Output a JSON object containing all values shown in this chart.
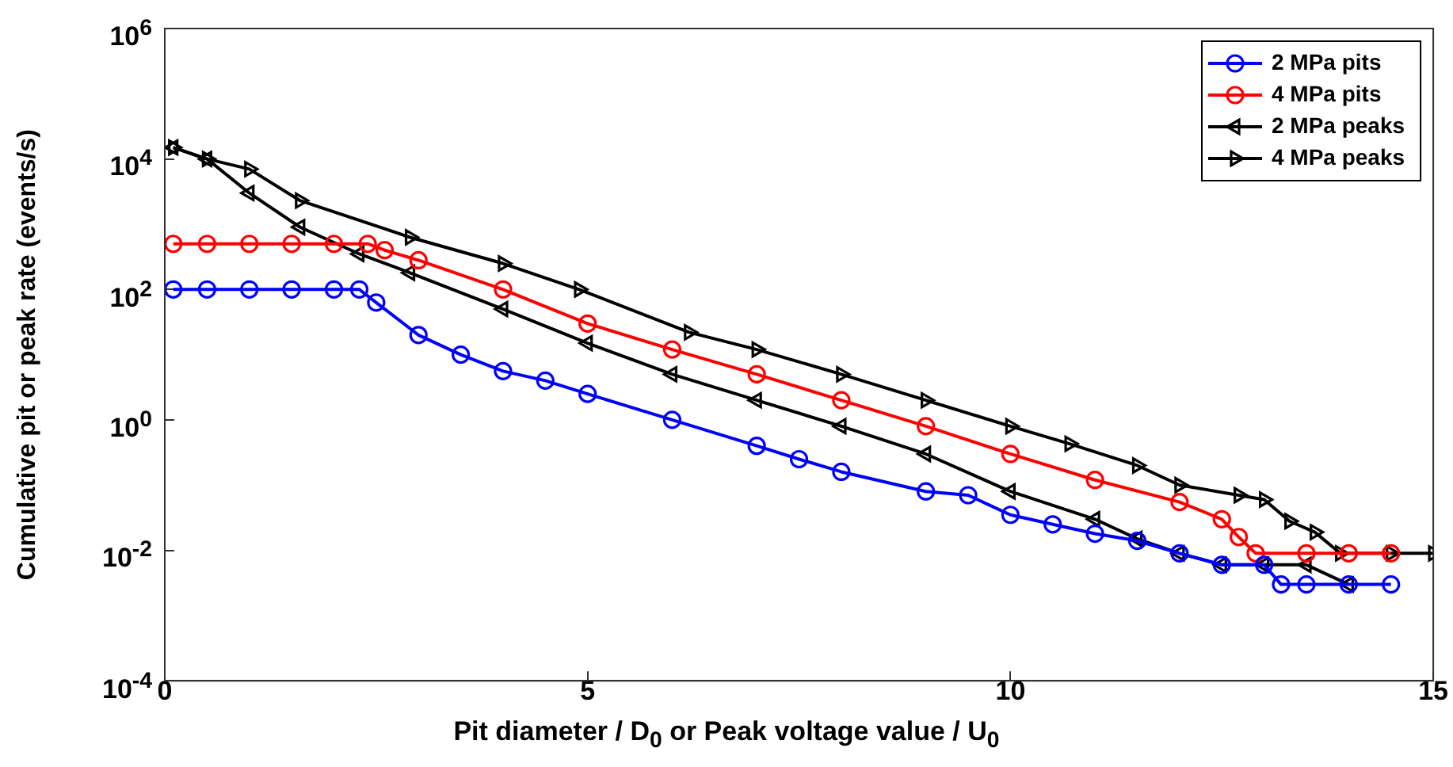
{
  "chart_data": {
    "type": "line",
    "xlabel": "Pit diameter / D$_{0}$ or Peak voltage value / U$_{0}$",
    "ylabel": "Cumulative pit or peak rate (events/s)",
    "log": "y",
    "grid": false,
    "legend": "top right",
    "line_style": "solid",
    "xlim": [
      0,
      15
    ],
    "xticks": [
      0,
      5,
      10,
      15
    ],
    "ylim": [
      0.0001,
      1000000
    ],
    "yticks": [
      {
        "value": 0.0001,
        "label": "10$^{-4}$"
      },
      {
        "value": 0.01,
        "label": "10$^{-2}$"
      },
      {
        "value": 1,
        "label": "10$^{0}$"
      },
      {
        "value": 100,
        "label": "10$^{2}$"
      },
      {
        "value": 10000,
        "label": "10$^{4}$"
      },
      {
        "value": 1000000,
        "label": "10$^{6}$"
      }
    ],
    "series": [
      {
        "name": "2 MPa pits",
        "color": "#0000ff",
        "marker": "circle",
        "x": [
          0.1,
          0.5,
          1,
          1.5,
          2,
          2.3,
          2.5,
          3,
          3.5,
          4,
          4.5,
          5,
          6,
          7,
          7.5,
          8,
          9,
          9.5,
          10,
          10.5,
          11,
          11.5,
          12,
          12.5,
          13,
          13.2,
          13.5,
          14,
          14.5
        ],
        "values": [
          100,
          100,
          100,
          100,
          100,
          100,
          63,
          20,
          10,
          5.6,
          4,
          2.5,
          1,
          0.4,
          0.25,
          0.16,
          0.08,
          0.07,
          0.035,
          0.025,
          0.018,
          0.014,
          0.009,
          0.006,
          0.006,
          0.003,
          0.003,
          0.003,
          0.003
        ]
      },
      {
        "name": "4 MPa pits",
        "color": "#ff0000",
        "marker": "circle",
        "x": [
          0.1,
          0.5,
          1,
          1.5,
          2,
          2.4,
          2.6,
          3,
          4,
          5,
          6,
          7,
          8,
          9,
          10,
          11,
          12,
          12.5,
          12.7,
          12.9,
          13.5,
          14,
          14.5
        ],
        "values": [
          500,
          500,
          500,
          500,
          500,
          500,
          400,
          280,
          100,
          30,
          12,
          5,
          2,
          0.8,
          0.3,
          0.12,
          0.055,
          0.03,
          0.016,
          0.009,
          0.009,
          0.009,
          0.009
        ]
      },
      {
        "name": "2 MPa peaks",
        "color": "#000000",
        "marker": "triangle",
        "x": [
          0.1,
          0.5,
          1,
          1.6,
          2.3,
          2.9,
          4,
          5,
          6,
          7,
          8,
          9,
          10,
          11,
          11.5,
          12,
          12.5,
          13,
          13.5,
          14
        ],
        "values": [
          15000,
          10000,
          3000,
          900,
          350,
          180,
          50,
          15,
          5,
          2,
          0.8,
          0.3,
          0.08,
          0.03,
          0.015,
          0.009,
          0.006,
          0.006,
          0.006,
          0.003
        ]
      },
      {
        "name": "4 MPa peaks",
        "color": "#000000",
        "marker": "triangle",
        "x": [
          0.1,
          0.5,
          1,
          1.6,
          2.9,
          4,
          4.9,
          6.2,
          7,
          8,
          9,
          10,
          10.7,
          11.5,
          12,
          12.7,
          13,
          13.3,
          13.6,
          13.9,
          14.5,
          15
        ],
        "values": [
          15000,
          10000,
          7000,
          2300,
          630,
          250,
          100,
          22,
          12,
          5,
          2,
          0.8,
          0.43,
          0.2,
          0.1,
          0.07,
          0.06,
          0.028,
          0.019,
          0.009,
          0.009,
          0.009
        ]
      }
    ]
  }
}
